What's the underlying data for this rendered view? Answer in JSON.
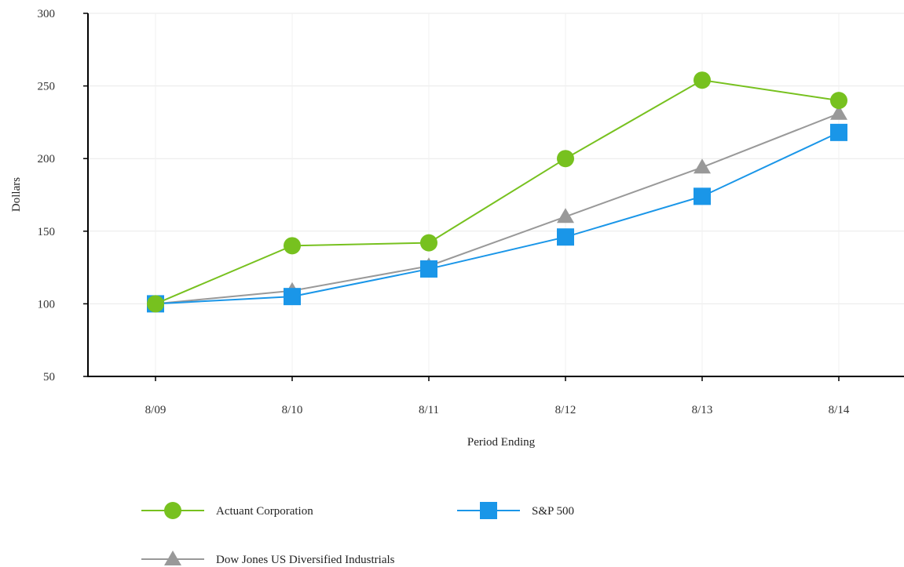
{
  "chart_data": {
    "type": "line",
    "categories": [
      "8/09",
      "8/10",
      "8/11",
      "8/12",
      "8/13",
      "8/14"
    ],
    "xlabel": "Period Ending",
    "ylabel": "Dollars",
    "ylim": [
      50,
      300
    ],
    "yticks": [
      50,
      100,
      150,
      200,
      250,
      300
    ],
    "grid": true,
    "legend_position": "bottom",
    "series": [
      {
        "name": "Actuant Corporation",
        "color": "#77c11f",
        "marker": "circle",
        "values": [
          100,
          140,
          142,
          200,
          254,
          240
        ]
      },
      {
        "name": "S&P 500",
        "color": "#1a96e8",
        "marker": "square",
        "values": [
          100,
          105,
          124,
          146,
          174,
          218
        ]
      },
      {
        "name": "Dow Jones US Diversified Industrials",
        "color": "#999999",
        "marker": "triangle",
        "values": [
          100,
          109,
          126,
          160,
          194,
          231
        ]
      }
    ]
  }
}
